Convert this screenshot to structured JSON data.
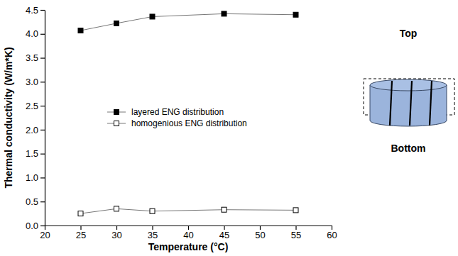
{
  "chart_data": {
    "type": "line",
    "x_label": "Temperature (°C)",
    "y_label": "Thermal conductivity (W/m*K)",
    "x": [
      25,
      30,
      35,
      45,
      55
    ],
    "series": [
      {
        "name": "layered ENG distribution",
        "color": "#000000",
        "marker": "square",
        "line_style": "solid",
        "values": [
          4.07,
          4.22,
          4.36,
          4.42,
          4.4
        ]
      },
      {
        "name": "homogenious ENG distribution",
        "color": "#000000",
        "marker": "square-open",
        "line_style": "solid",
        "values": [
          0.25,
          0.35,
          0.3,
          0.33,
          0.32
        ]
      }
    ],
    "xlim": [
      20,
      60
    ],
    "xticks": [
      20,
      25,
      30,
      35,
      40,
      45,
      50,
      55,
      60
    ],
    "ylim": [
      0,
      4.5
    ],
    "yticks": [
      {
        "value": 0,
        "label": "0.0"
      },
      0.5,
      {
        "value": 1,
        "label": "1.0"
      },
      1.5,
      {
        "value": 2,
        "label": "2.0"
      },
      2.5,
      {
        "value": 3,
        "label": "3.0"
      },
      3.5,
      {
        "value": 4,
        "label": "4.0"
      },
      4.5
    ],
    "legend": "left",
    "grid": false,
    "annotations": [
      "Top",
      "Bottom"
    ]
  }
}
